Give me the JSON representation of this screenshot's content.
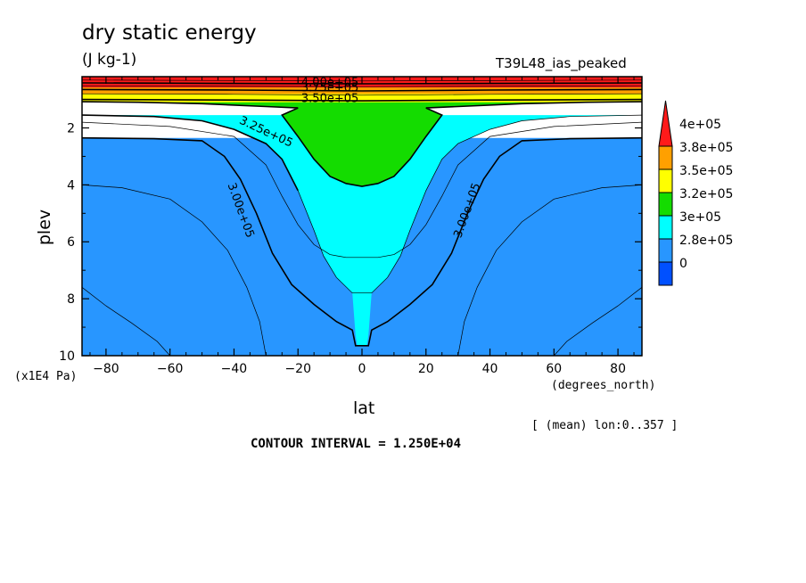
{
  "chart_data": {
    "type": "contour",
    "title": "dry static energy",
    "units_label": "(J kg-1)",
    "run_label": "T39L48_ias_peaked",
    "xlabel": "lat",
    "x_unit": "(degrees_north)",
    "ylabel": "plev",
    "y_unit": "(x1E4 Pa)",
    "xlim": [
      -87.5,
      87.5
    ],
    "ylim": [
      0.2,
      10
    ],
    "y_inverted": true,
    "x_ticks": [
      -80,
      -60,
      -40,
      -20,
      0,
      20,
      40,
      60,
      80
    ],
    "x_tick_labels": [
      "−80",
      "−60",
      "−40",
      "−20",
      "0",
      "20",
      "40",
      "60",
      "80"
    ],
    "y_ticks": [
      2,
      4,
      6,
      8,
      10
    ],
    "y_tick_labels": [
      "2",
      "4",
      "6",
      "8",
      "10"
    ],
    "contour_levels": [
      275000,
      287500,
      300000,
      312500,
      325000,
      337500,
      350000,
      362500,
      375000,
      387500,
      400000
    ],
    "bands": [
      {
        "label": "0",
        "color": "#0050ff",
        "regions": [
          [
            [
              -87.5,
              7.6
            ],
            [
              -80,
              8.25
            ],
            [
              -72,
              8.85
            ],
            [
              -64,
              9.5
            ],
            [
              -60,
              10
            ],
            [
              -87.5,
              10
            ]
          ],
          [
            [
              87.5,
              7.6
            ],
            [
              80,
              8.25
            ],
            [
              72,
              8.85
            ],
            [
              64,
              9.5
            ],
            [
              60,
              10
            ],
            [
              87.5,
              10
            ]
          ]
        ]
      },
      {
        "label": "2.8e+05",
        "color": "#2896ff",
        "regions": [
          [
            [
              -87.5,
              2.35
            ],
            [
              87.5,
              2.35
            ],
            [
              87.5,
              10
            ],
            [
              -87.5,
              10
            ]
          ]
        ]
      },
      {
        "label": "3e+05",
        "color": "#00ffff",
        "regions": [
          [
            [
              -87.5,
              1.55
            ],
            [
              -65,
              1.6
            ],
            [
              -50,
              1.75
            ],
            [
              -40,
              2.05
            ],
            [
              -30,
              2.55
            ],
            [
              -25,
              3.1
            ],
            [
              -20,
              4.2
            ],
            [
              -15,
              5.6
            ],
            [
              -12,
              6.5
            ],
            [
              -8,
              7.25
            ],
            [
              -3,
              7.8
            ],
            [
              -2,
              9.3
            ],
            [
              -1.5,
              9.65
            ],
            [
              1.5,
              9.65
            ],
            [
              2,
              9.3
            ],
            [
              3,
              7.8
            ],
            [
              8,
              7.25
            ],
            [
              12,
              6.5
            ],
            [
              15,
              5.6
            ],
            [
              20,
              4.2
            ],
            [
              25,
              3.1
            ],
            [
              30,
              2.55
            ],
            [
              40,
              2.05
            ],
            [
              50,
              1.75
            ],
            [
              65,
              1.6
            ],
            [
              87.5,
              1.55
            ]
          ]
        ]
      },
      {
        "label": "3.2e+05",
        "color": "#14dc00",
        "regions": [
          [
            [
              -87.5,
              1.08
            ],
            [
              -70,
              1.1
            ],
            [
              -50,
              1.15
            ],
            [
              -30,
              1.25
            ],
            [
              -20,
              1.3
            ],
            [
              -25,
              1.55
            ],
            [
              -20,
              2.3
            ],
            [
              -15,
              3.1
            ],
            [
              -10,
              3.7
            ],
            [
              -5,
              3.95
            ],
            [
              0,
              4.05
            ],
            [
              5,
              3.95
            ],
            [
              10,
              3.7
            ],
            [
              15,
              3.1
            ],
            [
              20,
              2.3
            ],
            [
              25,
              1.55
            ],
            [
              20,
              1.3
            ],
            [
              30,
              1.25
            ],
            [
              50,
              1.15
            ],
            [
              70,
              1.1
            ],
            [
              87.5,
              1.08
            ]
          ]
        ]
      },
      {
        "label": "3.5e+05",
        "color": "#ffff00",
        "regions": [
          [
            [
              -87.5,
              0.78
            ],
            [
              87.5,
              0.78
            ],
            [
              87.5,
              1.1
            ],
            [
              -87.5,
              1.1
            ]
          ]
        ]
      },
      {
        "label": "3.8e+05",
        "color": "#ffa000",
        "regions": [
          [
            [
              -87.5,
              0.55
            ],
            [
              87.5,
              0.55
            ],
            [
              87.5,
              0.8
            ],
            [
              -87.5,
              0.8
            ]
          ]
        ]
      },
      {
        "label": "4e+05",
        "color": "#ff1a1a",
        "regions": [
          [
            [
              -87.5,
              0.2
            ],
            [
              87.5,
              0.2
            ],
            [
              87.5,
              0.58
            ],
            [
              -87.5,
              0.58
            ]
          ]
        ]
      }
    ],
    "contour_lines": [
      {
        "value": 287500,
        "bold": false,
        "points": [
          [
            -87.5,
            7.6
          ],
          [
            -80,
            8.25
          ],
          [
            -72,
            8.85
          ],
          [
            -64,
            9.5
          ],
          [
            -60,
            10
          ]
        ]
      },
      {
        "value": 287500,
        "bold": false,
        "points": [
          [
            87.5,
            7.6
          ],
          [
            80,
            8.25
          ],
          [
            72,
            8.85
          ],
          [
            64,
            9.5
          ],
          [
            60,
            10
          ]
        ]
      },
      {
        "value": 300000,
        "bold": false,
        "points": [
          [
            -87.5,
            4.0
          ],
          [
            -75,
            4.1
          ],
          [
            -60,
            4.5
          ],
          [
            -50,
            5.3
          ],
          [
            -42,
            6.3
          ],
          [
            -36,
            7.6
          ],
          [
            -32,
            8.8
          ],
          [
            -30,
            10
          ]
        ]
      },
      {
        "value": 300000,
        "bold": false,
        "points": [
          [
            87.5,
            4.0
          ],
          [
            75,
            4.1
          ],
          [
            60,
            4.5
          ],
          [
            50,
            5.3
          ],
          [
            42,
            6.3
          ],
          [
            36,
            7.6
          ],
          [
            32,
            8.8
          ],
          [
            30,
            10
          ]
        ]
      },
      {
        "value": 312500,
        "bold": true,
        "points": [
          [
            -87.5,
            2.35
          ],
          [
            -65,
            2.38
          ],
          [
            -50,
            2.45
          ],
          [
            -43,
            3.0
          ],
          [
            -38,
            3.8
          ],
          [
            -33,
            5.0
          ],
          [
            -28,
            6.4
          ],
          [
            -22,
            7.5
          ],
          [
            -15,
            8.2
          ],
          [
            -8,
            8.8
          ],
          [
            -3,
            9.1
          ],
          [
            -2,
            9.65
          ],
          [
            2,
            9.65
          ],
          [
            3,
            9.1
          ],
          [
            8,
            8.8
          ],
          [
            15,
            8.2
          ],
          [
            22,
            7.5
          ],
          [
            28,
            6.4
          ],
          [
            33,
            5.0
          ],
          [
            38,
            3.8
          ],
          [
            43,
            3.0
          ],
          [
            50,
            2.45
          ],
          [
            65,
            2.38
          ],
          [
            87.5,
            2.35
          ]
        ]
      },
      {
        "value": 312500,
        "bold": false,
        "points": [
          [
            -87.5,
            1.8
          ],
          [
            -60,
            1.95
          ],
          [
            -40,
            2.3
          ],
          [
            -30,
            3.3
          ],
          [
            -25,
            4.4
          ],
          [
            -20,
            5.4
          ],
          [
            -15,
            6.1
          ],
          [
            -10,
            6.45
          ],
          [
            -5,
            6.55
          ],
          [
            0,
            6.55
          ],
          [
            5,
            6.55
          ],
          [
            10,
            6.45
          ],
          [
            15,
            6.1
          ],
          [
            20,
            5.4
          ],
          [
            25,
            4.4
          ],
          [
            30,
            3.3
          ],
          [
            40,
            2.3
          ],
          [
            60,
            1.95
          ],
          [
            87.5,
            1.8
          ]
        ]
      },
      {
        "value": 325000,
        "bold": true,
        "points": [
          [
            -87.5,
            1.55
          ],
          [
            -65,
            1.6
          ],
          [
            -50,
            1.75
          ],
          [
            -40,
            2.05
          ],
          [
            -30,
            2.55
          ],
          [
            -25,
            3.1
          ],
          [
            -20,
            4.2
          ]
        ]
      },
      {
        "value": 325000,
        "bold": false,
        "points": [
          [
            -20,
            4.2
          ],
          [
            -15,
            5.6
          ],
          [
            -12,
            6.5
          ],
          [
            -8,
            7.25
          ],
          [
            -3,
            7.8
          ],
          [
            3,
            7.8
          ],
          [
            8,
            7.25
          ],
          [
            12,
            6.5
          ],
          [
            15,
            5.6
          ],
          [
            20,
            4.2
          ],
          [
            25,
            3.1
          ],
          [
            30,
            2.55
          ],
          [
            40,
            2.05
          ],
          [
            50,
            1.75
          ],
          [
            65,
            1.6
          ],
          [
            87.5,
            1.55
          ]
        ]
      },
      {
        "value": 337500,
        "bold": true,
        "points": [
          [
            -87.5,
            1.08
          ],
          [
            -70,
            1.1
          ],
          [
            -50,
            1.15
          ],
          [
            -30,
            1.25
          ],
          [
            -20,
            1.3
          ],
          [
            -25,
            1.55
          ],
          [
            -20,
            2.3
          ],
          [
            -15,
            3.1
          ],
          [
            -10,
            3.7
          ],
          [
            -5,
            3.95
          ],
          [
            0,
            4.05
          ],
          [
            5,
            3.95
          ],
          [
            10,
            3.7
          ],
          [
            15,
            3.1
          ],
          [
            20,
            2.3
          ],
          [
            25,
            1.55
          ],
          [
            20,
            1.3
          ],
          [
            30,
            1.25
          ],
          [
            50,
            1.15
          ],
          [
            70,
            1.1
          ],
          [
            87.5,
            1.08
          ]
        ]
      },
      {
        "value": 350000,
        "bold": true,
        "points": [
          [
            -87.5,
            1.0
          ],
          [
            -40,
            1.02
          ],
          [
            0,
            1.05
          ],
          [
            40,
            1.02
          ],
          [
            87.5,
            1.0
          ]
        ]
      },
      {
        "value": 362500,
        "bold": false,
        "points": [
          [
            -87.5,
            0.8
          ],
          [
            -40,
            0.82
          ],
          [
            0,
            0.85
          ],
          [
            40,
            0.82
          ],
          [
            87.5,
            0.8
          ]
        ]
      },
      {
        "value": 375000,
        "bold": true,
        "points": [
          [
            -87.5,
            0.65
          ],
          [
            -40,
            0.67
          ],
          [
            0,
            0.7
          ],
          [
            40,
            0.67
          ],
          [
            87.5,
            0.65
          ]
        ]
      },
      {
        "value": 387500,
        "bold": false,
        "points": [
          [
            -87.5,
            0.52
          ],
          [
            0,
            0.55
          ],
          [
            87.5,
            0.52
          ]
        ]
      },
      {
        "value": 400000,
        "bold": true,
        "points": [
          [
            -87.5,
            0.42
          ],
          [
            0,
            0.45
          ],
          [
            87.5,
            0.42
          ]
        ]
      },
      {
        "value": 412500,
        "bold": false,
        "points": [
          [
            -87.5,
            0.32
          ],
          [
            0,
            0.35
          ],
          [
            87.5,
            0.32
          ]
        ]
      }
    ],
    "contour_labels": [
      {
        "text": "4.00e+05",
        "x": -10,
        "y": 0.42,
        "angle": 0
      },
      {
        "text": "3.75e+05",
        "x": -10,
        "y": 0.6,
        "angle": 0
      },
      {
        "text": "3.50e+05",
        "x": -10,
        "y": 0.98,
        "angle": 0
      },
      {
        "text": "3.25e+05",
        "x": -30,
        "y": 2.15,
        "angle": 25
      },
      {
        "text": "3.00e+05",
        "x": -38,
        "y": 4.9,
        "angle": 70
      },
      {
        "text": "3.00e+05",
        "x": 33,
        "y": 4.9,
        "angle": -70
      }
    ],
    "legend": {
      "placement": "right",
      "labels": [
        "4e+05",
        "3.8e+05",
        "3.5e+05",
        "3.2e+05",
        "3e+05",
        "2.8e+05",
        "0"
      ],
      "colors": [
        "#ff1a1a",
        "#ffa000",
        "#ffff00",
        "#14dc00",
        "#00ffff",
        "#2896ff",
        "#0050ff"
      ]
    },
    "footer": {
      "mean_note": "[ (mean) lon:0..357 ]",
      "contour_interval": "CONTOUR INTERVAL = 1.250E+04"
    }
  }
}
